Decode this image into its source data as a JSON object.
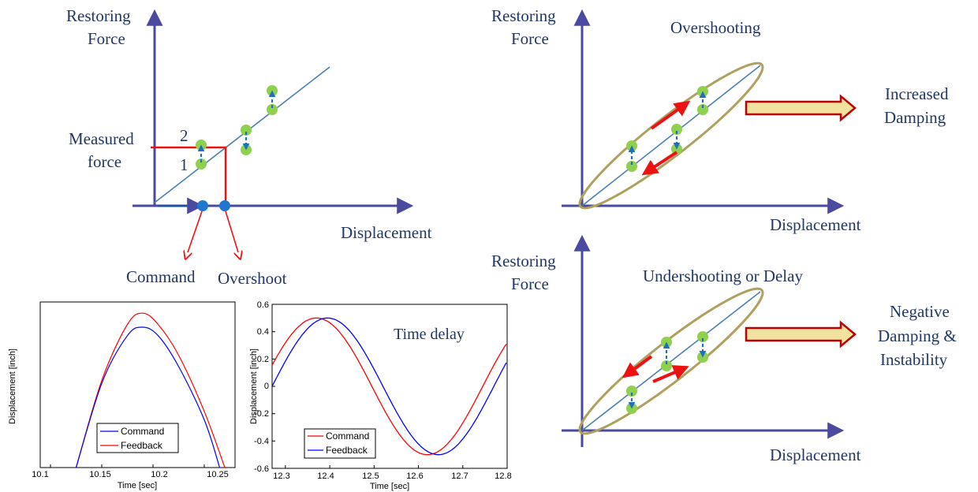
{
  "colors": {
    "axis": "#4a4aa0",
    "text": "#1f3864",
    "line": "#4a7fb0",
    "dot": "#8fd14f",
    "dot_blue": "#1f77d0",
    "arrow_red": "#ee1111",
    "ellipse": "#b0a060",
    "big_arrow_fill": "#f2e2a0",
    "big_arrow_stroke": "#c00000",
    "command": "#ff0000",
    "feedback": "#0000ff"
  },
  "diagram_top_left": {
    "y_axis_label": [
      "Restoring",
      "Force"
    ],
    "x_axis_label": "Displacement",
    "measured_label": [
      "Measured",
      "force"
    ],
    "num_1": "1",
    "num_2": "2",
    "command_label": "Command",
    "overshoot_label": "Overshoot"
  },
  "diagram_top_right": {
    "y_axis_label": [
      "Restoring",
      "Force"
    ],
    "title": "Overshooting",
    "x_axis_label": "Displacement",
    "result_label": [
      "Increased",
      "Damping"
    ]
  },
  "diagram_bottom_right": {
    "y_axis_label": [
      "Restoring",
      "Force"
    ],
    "title": "Undershooting or Delay",
    "x_axis_label": "Displacement",
    "result_label": [
      "Negative",
      "Damping &",
      "Instability"
    ]
  },
  "plot_left": {
    "ylabel": "Displacement [inch]",
    "xlabel": "Time [sec]",
    "xticks": [
      "10.1",
      "10.15",
      "10.2",
      "10.25"
    ],
    "legend": [
      "Command",
      "Feedback"
    ]
  },
  "plot_right": {
    "ylabel": "Displacement [inch]",
    "xlabel": "Time [sec]",
    "annotation": "Time delay",
    "xticks": [
      "12.3",
      "12.4",
      "12.5",
      "12.6",
      "12.7",
      "12.8"
    ],
    "yticks": [
      "0.6",
      "0.4",
      "0.2",
      "0",
      "-0.2",
      "-0.4",
      "-0.6"
    ],
    "legend": [
      "Command",
      "Feedback"
    ]
  },
  "chart_data": [
    {
      "type": "line",
      "xlabel": "Time [sec]",
      "ylabel": "Displacement [inch]",
      "xlim": [
        10.09,
        10.28
      ],
      "series": [
        {
          "name": "Command",
          "x": [
            10.125,
            10.15,
            10.175,
            10.19,
            10.205,
            10.225,
            10.25,
            10.265
          ],
          "y": [
            -0.12,
            0.18,
            0.35,
            0.38,
            0.35,
            0.24,
            0.05,
            -0.12
          ]
        },
        {
          "name": "Feedback",
          "x": [
            10.125,
            10.15,
            10.175,
            10.19,
            10.205,
            10.225,
            10.25,
            10.27
          ],
          "y": [
            -0.12,
            0.19,
            0.39,
            0.43,
            0.39,
            0.28,
            0.08,
            -0.12
          ]
        }
      ]
    },
    {
      "type": "line",
      "xlabel": "Time [sec]",
      "ylabel": "Displacement [inch]",
      "xlim": [
        12.27,
        12.8
      ],
      "ylim": [
        -0.6,
        0.6
      ],
      "series": [
        {
          "name": "Command",
          "x": [
            12.27,
            12.37,
            12.49,
            12.62,
            12.74,
            12.8
          ],
          "y": [
            0.08,
            0.5,
            0.0,
            -0.5,
            0.0,
            0.32
          ]
        },
        {
          "name": "Feedback",
          "x": [
            12.27,
            12.395,
            12.515,
            12.645,
            12.765,
            12.8
          ],
          "y": [
            0.02,
            0.5,
            0.0,
            -0.5,
            0.0,
            0.18
          ]
        }
      ]
    }
  ]
}
